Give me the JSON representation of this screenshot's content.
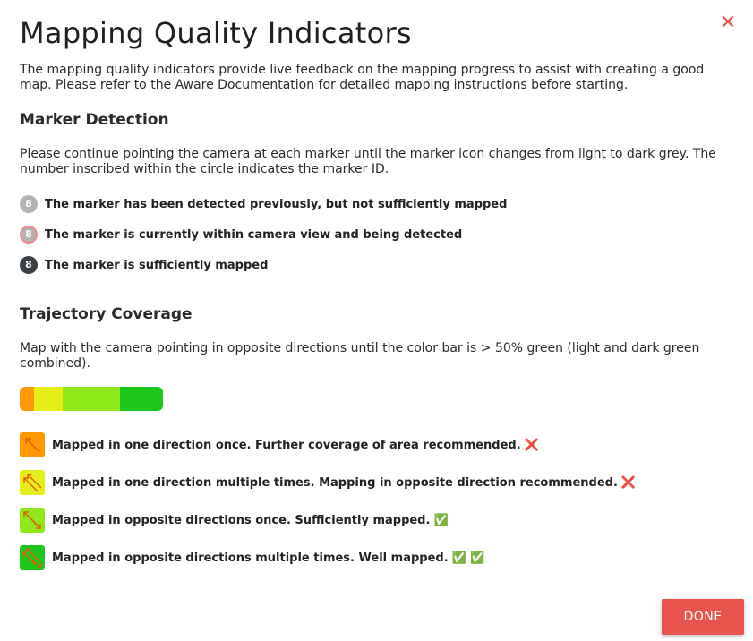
{
  "dialog": {
    "title": "Mapping Quality Indicators",
    "close_icon": "close-icon",
    "intro": "The mapping quality indicators provide live feedback on the mapping progress to assist with creating a good map. Please refer to the Aware Documentation for detailed mapping instructions before starting.",
    "done_label": "DONE"
  },
  "marker_detection": {
    "heading": "Marker Detection",
    "description": "Please continue pointing the camera at each marker until the marker icon changes from light to dark grey. The number inscribed within the circle indicates the marker ID.",
    "items": [
      {
        "id": "8",
        "text": "The marker has been detected previously, but not sufficiently mapped"
      },
      {
        "id": "8",
        "text": "The marker is currently within camera view and being detected"
      },
      {
        "id": "8",
        "text": "The marker is sufficiently mapped"
      }
    ]
  },
  "trajectory_coverage": {
    "heading": "Trajectory Coverage",
    "description": "Map with the camera pointing in opposite directions until the color bar is > 50% green (light and dark green combined).",
    "bar_colors": [
      "#ff9800",
      "#e6ee1a",
      "#8ee81a",
      "#1cc81c"
    ],
    "items": [
      {
        "text": "Mapped in one direction once. Further coverage of area recommended.",
        "status": "❌"
      },
      {
        "text": "Mapped in one direction multiple times. Mapping in opposite direction recommended.",
        "status": "❌"
      },
      {
        "text": "Mapped in opposite directions once. Sufficiently mapped.",
        "status": "✅"
      },
      {
        "text": "Mapped in opposite directions multiple times. Well mapped.",
        "status": "✅ ✅"
      }
    ]
  },
  "colors": {
    "accent": "#e8534d",
    "marker_light": "#b3b3b3",
    "marker_ring": "#f08a8a",
    "marker_dark": "#3a3f44"
  }
}
